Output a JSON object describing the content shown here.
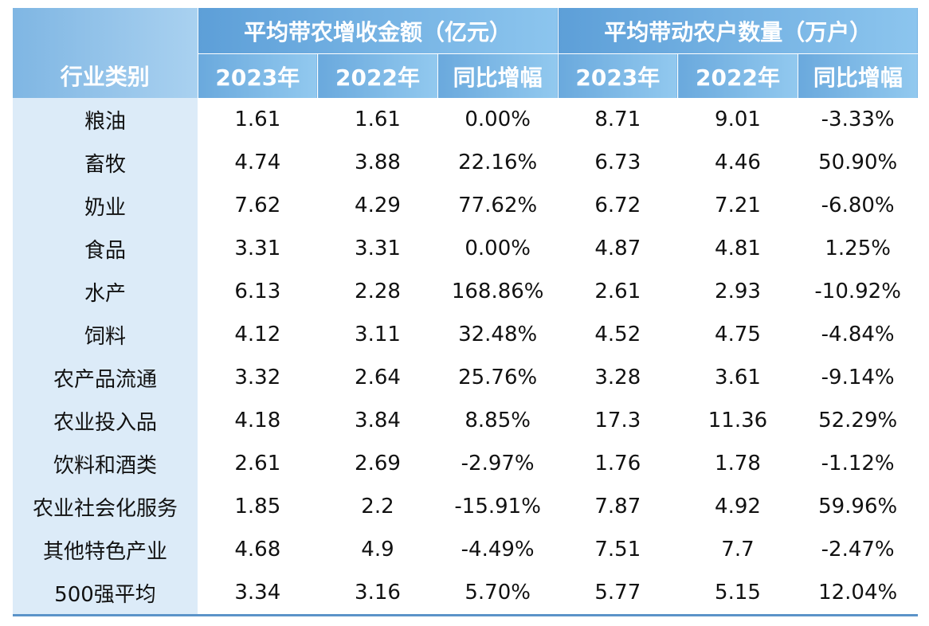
{
  "table": {
    "corner_label": "行业类别",
    "group_income": "平均带农增收金额（亿元）",
    "group_households": "平均带动农户数量（万户）",
    "sub_headers": [
      "2023年",
      "2022年",
      "同比增幅",
      "2023年",
      "2022年",
      "同比增幅"
    ],
    "rows": [
      {
        "name": "粮油",
        "cells": [
          "1.61",
          "1.61",
          "0.00%",
          "8.71",
          "9.01",
          "-3.33%"
        ]
      },
      {
        "name": "畜牧",
        "cells": [
          "4.74",
          "3.88",
          "22.16%",
          "6.73",
          "4.46",
          "50.90%"
        ]
      },
      {
        "name": "奶业",
        "cells": [
          "7.62",
          "4.29",
          "77.62%",
          "6.72",
          "7.21",
          "-6.80%"
        ]
      },
      {
        "name": "食品",
        "cells": [
          "3.31",
          "3.31",
          "0.00%",
          "4.87",
          "4.81",
          "1.25%"
        ]
      },
      {
        "name": "水产",
        "cells": [
          "6.13",
          "2.28",
          "168.86%",
          "2.61",
          "2.93",
          "-10.92%"
        ]
      },
      {
        "name": "饲料",
        "cells": [
          "4.12",
          "3.11",
          "32.48%",
          "4.52",
          "4.75",
          "-4.84%"
        ]
      },
      {
        "name": "农产品流通",
        "cells": [
          "3.32",
          "2.64",
          "25.76%",
          "3.28",
          "3.61",
          "-9.14%"
        ]
      },
      {
        "name": "农业投入品",
        "cells": [
          "4.18",
          "3.84",
          "8.85%",
          "17.3",
          "11.36",
          "52.29%"
        ]
      },
      {
        "name": "饮料和酒类",
        "cells": [
          "2.61",
          "2.69",
          "-2.97%",
          "1.76",
          "1.78",
          "-1.12%"
        ]
      },
      {
        "name": "农业社会化服务",
        "cells": [
          "1.85",
          "2.2",
          "-15.91%",
          "7.87",
          "4.92",
          "59.96%"
        ]
      },
      {
        "name": "其他特色产业",
        "cells": [
          "4.68",
          "4.9",
          "-4.49%",
          "7.51",
          "7.7",
          "-2.47%"
        ]
      },
      {
        "name": "500强平均",
        "cells": [
          "3.34",
          "3.16",
          "5.70%",
          "5.77",
          "5.15",
          "12.04%"
        ]
      }
    ]
  },
  "colors": {
    "header_blue": "#5d9fd8",
    "header_light": "#8cc5ee",
    "row_label_bg": "#dcebf8",
    "bottom_rule": "#5b93c9"
  }
}
